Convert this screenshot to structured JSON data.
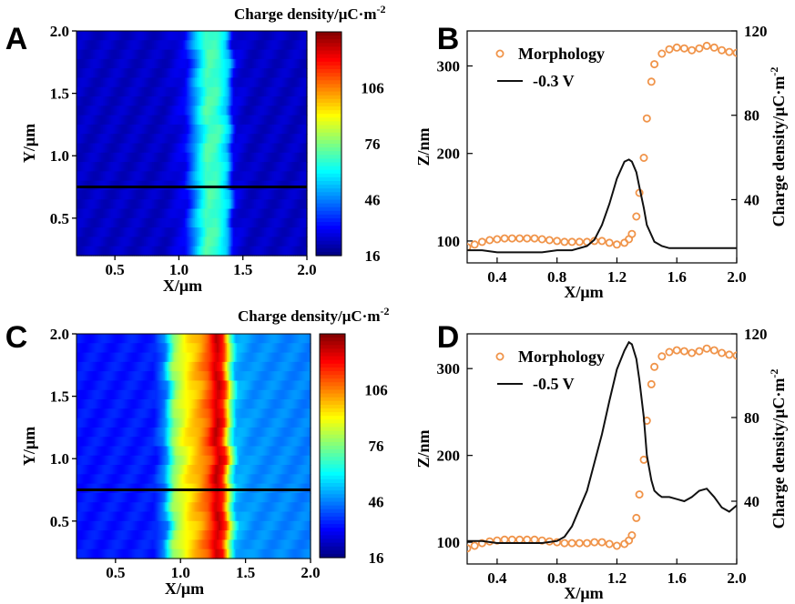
{
  "chart_data": [
    {
      "panel": "A",
      "type": "heatmap",
      "xlabel": "X/μm",
      "ylabel": "Y/μm",
      "xlim": [
        0.2,
        2.0
      ],
      "ylim": [
        0.2,
        2.0
      ],
      "xticks": [
        0.5,
        1.0,
        1.5,
        2.0
      ],
      "xtick_labels": [
        "0.5",
        "1.0",
        "1.5",
        "2.0"
      ],
      "yticks": [
        0.5,
        1.0,
        1.5,
        2.0
      ],
      "ytick_labels": [
        "0.5",
        "1.0",
        "1.5",
        "2.0"
      ],
      "colorbar": {
        "label": "Charge density/μC·m",
        "label_sup": "-2",
        "range": [
          16,
          136
        ],
        "ticks": [
          16,
          46,
          76,
          106
        ],
        "tick_labels": [
          "16",
          "46",
          "76",
          "106"
        ]
      },
      "profile": [
        {
          "x": 0.2,
          "value": 24
        },
        {
          "x": 0.9,
          "value": 24
        },
        {
          "x": 1.05,
          "value": 30
        },
        {
          "x": 1.15,
          "value": 55
        },
        {
          "x": 1.22,
          "value": 70
        },
        {
          "x": 1.3,
          "value": 68
        },
        {
          "x": 1.38,
          "value": 55
        },
        {
          "x": 1.43,
          "value": 28
        },
        {
          "x": 1.55,
          "value": 24
        },
        {
          "x": 2.0,
          "value": 24
        }
      ],
      "line_cut_y": 0.75
    },
    {
      "panel": "B",
      "type": "line",
      "xlabel": "X/μm",
      "ylabel": "Z/nm",
      "ylabel_right": "Charge density/μC·m",
      "ylabel_right_sup": "-2",
      "xlim": [
        0.2,
        2.0
      ],
      "ylim": [
        75,
        340
      ],
      "ylim_right": [
        10,
        120
      ],
      "xticks": [
        0.4,
        0.8,
        1.2,
        1.6,
        2.0
      ],
      "xtick_labels": [
        "0.4",
        "0.8",
        "1.2",
        "1.6",
        "2.0"
      ],
      "yticks": [
        100,
        200,
        300
      ],
      "ytick_labels": [
        "100",
        "200",
        "300"
      ],
      "yticks_right": [
        40,
        80,
        120
      ],
      "ytick_labels_right": [
        "40",
        "80",
        "120"
      ],
      "legend_position": "top-left",
      "series": [
        {
          "name": "Morphology",
          "style": "circles",
          "axis": "left",
          "color": "#f0944a",
          "x": [
            0.2,
            0.25,
            0.3,
            0.35,
            0.4,
            0.45,
            0.5,
            0.55,
            0.6,
            0.65,
            0.7,
            0.75,
            0.8,
            0.85,
            0.9,
            0.95,
            1.0,
            1.05,
            1.1,
            1.15,
            1.2,
            1.25,
            1.28,
            1.3,
            1.33,
            1.35,
            1.38,
            1.4,
            1.43,
            1.45,
            1.5,
            1.55,
            1.6,
            1.65,
            1.7,
            1.75,
            1.8,
            1.85,
            1.9,
            1.95,
            2.0
          ],
          "y": [
            93,
            96,
            99,
            101,
            102,
            103,
            103,
            103,
            103,
            103,
            102,
            101,
            100,
            99,
            99,
            99,
            99,
            100,
            100,
            98,
            96,
            98,
            102,
            108,
            128,
            155,
            195,
            240,
            282,
            302,
            314,
            319,
            321,
            320,
            318,
            320,
            323,
            321,
            318,
            316,
            315
          ]
        },
        {
          "name": "-0.3 V",
          "style": "line",
          "axis": "right",
          "color": "#111111",
          "x": [
            0.2,
            0.3,
            0.4,
            0.5,
            0.6,
            0.7,
            0.8,
            0.9,
            1.0,
            1.05,
            1.1,
            1.15,
            1.2,
            1.25,
            1.28,
            1.3,
            1.33,
            1.35,
            1.38,
            1.4,
            1.45,
            1.5,
            1.55,
            1.6,
            1.7,
            1.8,
            1.9,
            2.0
          ],
          "y": [
            16,
            16,
            15,
            15,
            15,
            15,
            16,
            16,
            18,
            21,
            28,
            38,
            50,
            58,
            59,
            58,
            53,
            46,
            36,
            28,
            20,
            18,
            17,
            17,
            17,
            17,
            17,
            17
          ]
        }
      ]
    },
    {
      "panel": "C",
      "type": "heatmap",
      "xlabel": "X/μm",
      "ylabel": "Y/μm",
      "xlim": [
        0.2,
        2.0
      ],
      "ylim": [
        0.2,
        2.0
      ],
      "xticks": [
        0.5,
        1.0,
        1.5,
        2.0
      ],
      "xtick_labels": [
        "0.5",
        "1.0",
        "1.5",
        "2.0"
      ],
      "yticks": [
        0.5,
        1.0,
        1.5,
        2.0
      ],
      "ytick_labels": [
        "0.5",
        "1.0",
        "1.5",
        "2.0"
      ],
      "colorbar": {
        "label": "Charge density/μC·m",
        "label_sup": "-2",
        "range": [
          16,
          136
        ],
        "ticks": [
          16,
          46,
          76,
          106
        ],
        "tick_labels": [
          "16",
          "46",
          "76",
          "106"
        ]
      },
      "profile": [
        {
          "x": 0.2,
          "value": 33
        },
        {
          "x": 0.8,
          "value": 34
        },
        {
          "x": 0.88,
          "value": 46
        },
        {
          "x": 0.95,
          "value": 78
        },
        {
          "x": 1.05,
          "value": 92
        },
        {
          "x": 1.15,
          "value": 102
        },
        {
          "x": 1.22,
          "value": 112
        },
        {
          "x": 1.28,
          "value": 128
        },
        {
          "x": 1.33,
          "value": 118
        },
        {
          "x": 1.38,
          "value": 80
        },
        {
          "x": 1.43,
          "value": 52
        },
        {
          "x": 1.55,
          "value": 48
        },
        {
          "x": 2.0,
          "value": 46
        }
      ],
      "line_cut_y": 0.75
    },
    {
      "panel": "D",
      "type": "line",
      "xlabel": "X/μm",
      "ylabel": "Z/nm",
      "ylabel_right": "Charge density/μC·m",
      "ylabel_right_sup": "-2",
      "xlim": [
        0.2,
        2.0
      ],
      "ylim": [
        75,
        340
      ],
      "ylim_right": [
        10,
        120
      ],
      "xticks": [
        0.4,
        0.8,
        1.2,
        1.6,
        2.0
      ],
      "xtick_labels": [
        "0.4",
        "0.8",
        "1.2",
        "1.6",
        "2.0"
      ],
      "yticks": [
        100,
        200,
        300
      ],
      "ytick_labels": [
        "100",
        "200",
        "300"
      ],
      "yticks_right": [
        40,
        80,
        120
      ],
      "ytick_labels_right": [
        "40",
        "80",
        "120"
      ],
      "legend_position": "top-left",
      "series": [
        {
          "name": "Morphology",
          "style": "circles",
          "axis": "left",
          "color": "#f0944a",
          "x": [
            0.2,
            0.25,
            0.3,
            0.35,
            0.4,
            0.45,
            0.5,
            0.55,
            0.6,
            0.65,
            0.7,
            0.75,
            0.8,
            0.85,
            0.9,
            0.95,
            1.0,
            1.05,
            1.1,
            1.15,
            1.2,
            1.25,
            1.28,
            1.3,
            1.33,
            1.35,
            1.38,
            1.4,
            1.43,
            1.45,
            1.5,
            1.55,
            1.6,
            1.65,
            1.7,
            1.75,
            1.8,
            1.85,
            1.9,
            1.95,
            2.0
          ],
          "y": [
            93,
            96,
            99,
            101,
            102,
            103,
            103,
            103,
            103,
            103,
            102,
            101,
            100,
            99,
            99,
            99,
            99,
            100,
            100,
            98,
            96,
            98,
            102,
            108,
            128,
            155,
            195,
            240,
            282,
            302,
            314,
            319,
            321,
            320,
            318,
            320,
            323,
            321,
            318,
            316,
            315
          ]
        },
        {
          "name": "-0.5 V",
          "style": "line",
          "axis": "right",
          "color": "#111111",
          "x": [
            0.2,
            0.3,
            0.4,
            0.5,
            0.6,
            0.7,
            0.8,
            0.85,
            0.9,
            1.0,
            1.1,
            1.15,
            1.2,
            1.25,
            1.28,
            1.3,
            1.33,
            1.35,
            1.38,
            1.4,
            1.43,
            1.45,
            1.48,
            1.5,
            1.55,
            1.6,
            1.65,
            1.7,
            1.75,
            1.8,
            1.85,
            1.9,
            1.95,
            2.0
          ],
          "y": [
            21,
            21,
            20,
            20,
            20,
            20,
            21,
            23,
            28,
            45,
            72,
            88,
            103,
            112,
            116,
            115,
            108,
            98,
            80,
            62,
            50,
            45,
            43,
            42,
            42,
            41,
            40,
            42,
            45,
            46,
            42,
            37,
            35,
            38
          ]
        }
      ]
    }
  ]
}
